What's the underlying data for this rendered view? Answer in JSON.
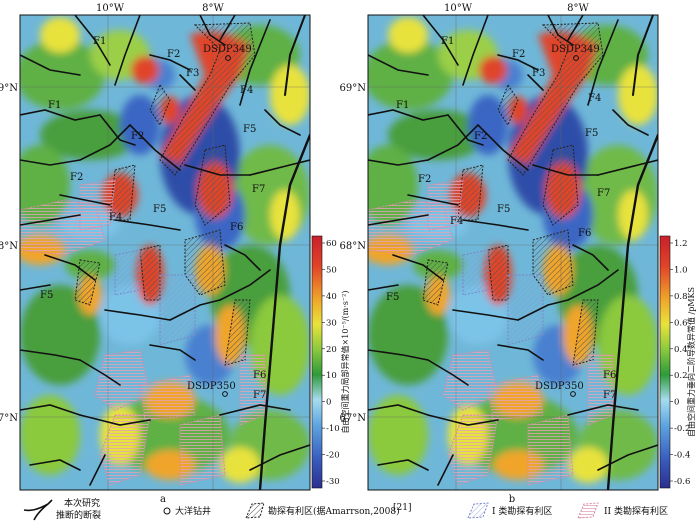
{
  "figure": {
    "longitude_labels": [
      "10°W",
      "8°W"
    ],
    "latitude_labels": [
      "69°N",
      "68°N",
      "67°N"
    ]
  },
  "panels": [
    {
      "id": "a",
      "caption": "a",
      "colorbar": {
        "title": "自由空间重力局部异常值×10⁻⁵/(m·s⁻²)",
        "ticks": [
          "60",
          "50",
          "40",
          "30",
          "20",
          "10",
          "0",
          "-10",
          "-20",
          "-30"
        ]
      },
      "fault_labels": [
        "F1",
        "F1",
        "F2",
        "F2",
        "F3",
        "F4",
        "F5",
        "F2",
        "F4",
        "F5",
        "F6",
        "F7",
        "F5",
        "F6",
        "F7"
      ],
      "wells": [
        "DSDP349",
        "DSDP350"
      ]
    },
    {
      "id": "b",
      "caption": "b",
      "colorbar": {
        "title": "自由空间重力垂向二阶导数异常值 /pMKS",
        "ticks": [
          "1.2",
          "1.0",
          "0.8",
          "0.6",
          "0.4",
          "0.2",
          "0",
          "-0.2",
          "-0.4",
          "-0.6"
        ]
      },
      "fault_labels": [
        "F1",
        "F1",
        "F2",
        "F2",
        "F3",
        "F4",
        "F5",
        "F2",
        "F4",
        "F5",
        "F6",
        "F7",
        "F5",
        "F6",
        "F7"
      ],
      "wells": [
        "DSDP349",
        "DSDP350"
      ]
    }
  ],
  "legend": {
    "fault_line1": "本次研究",
    "fault_line2": "推断的断裂",
    "well": "大洋钻井",
    "prospect_prev": "勘探有利区(据Amarrson,2008)",
    "prospect_prev_ref": "[21]",
    "class1": "I 类勘探有利区",
    "class2": "II 类勘探有利区"
  },
  "colors": {
    "ramp": [
      "#2b2f8f",
      "#3a66c4",
      "#62a6e0",
      "#9ad4ef",
      "#2f9a3a",
      "#8bc93e",
      "#e8e23c",
      "#f0a52a",
      "#e0442a",
      "#c8202a"
    ],
    "fault": "#111111",
    "prospect_fill": "#7a7a7a",
    "class1_outline": "#7a86c8",
    "class2_outline": "#d98aa8"
  }
}
